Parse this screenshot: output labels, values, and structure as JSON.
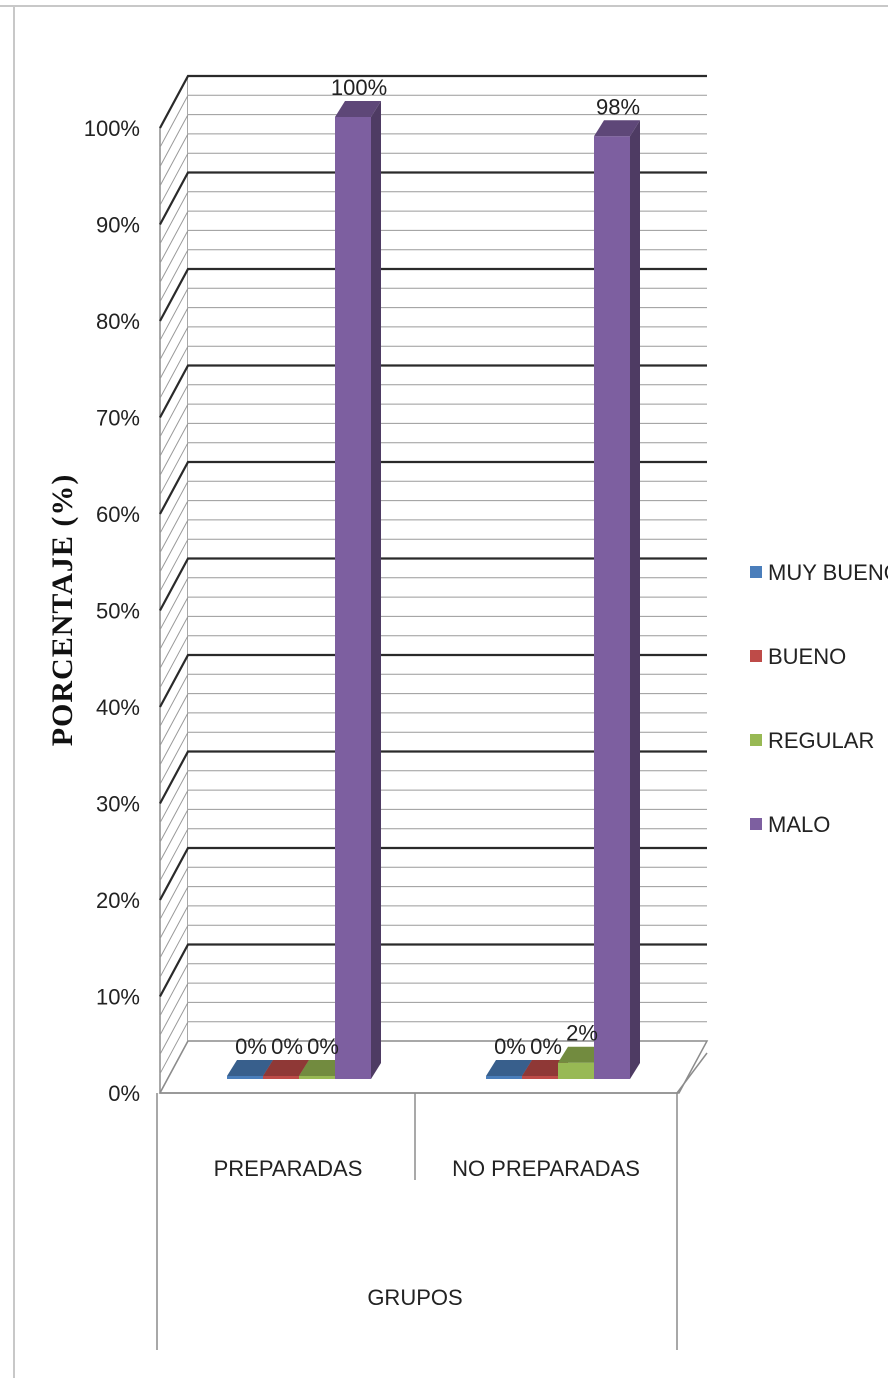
{
  "chart_data": {
    "type": "bar",
    "style": "3d-clustered-column",
    "categories": [
      "PREPARADAS",
      "NO PREPARADAS"
    ],
    "series": [
      {
        "name": "MUY BUENO",
        "values": [
          0,
          0
        ],
        "color": "#4a7ebb",
        "labels": [
          "0%",
          "0%"
        ]
      },
      {
        "name": "BUENO",
        "values": [
          0,
          0
        ],
        "color": "#be4b48",
        "labels": [
          "0%",
          "0%"
        ]
      },
      {
        "name": "REGULAR",
        "values": [
          0,
          2
        ],
        "color": "#98b954",
        "labels": [
          "0%",
          "2%"
        ]
      },
      {
        "name": "MALO",
        "values": [
          100,
          98
        ],
        "color": "#7d5fa0",
        "labels": [
          "100%",
          "98%"
        ]
      }
    ],
    "ylabel": "PORCENTAJE (%)",
    "xlabel": "GRUPOS",
    "ylim": [
      0,
      100
    ],
    "yticks": [
      "0%",
      "10%",
      "20%",
      "30%",
      "40%",
      "50%",
      "60%",
      "70%",
      "80%",
      "90%",
      "100%"
    ],
    "grid": true,
    "legend_position": "right"
  }
}
